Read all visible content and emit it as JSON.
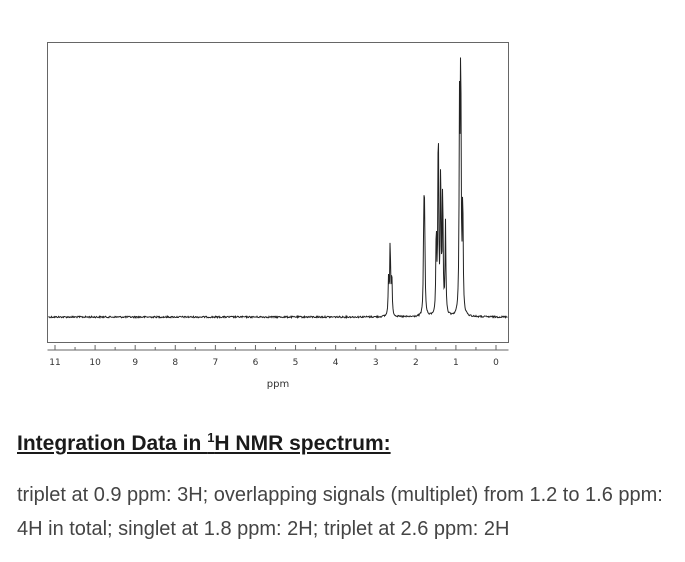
{
  "chart_data": {
    "type": "line",
    "xlabel": "ppm",
    "xlim": [
      11.3,
      0
    ],
    "x_reversed": true,
    "x_ticks": [
      11,
      10,
      9,
      8,
      7,
      6,
      5,
      4,
      3,
      2,
      1,
      0
    ],
    "peaks": [
      {
        "ppm": 0.91,
        "rel_height": 0.74
      },
      {
        "ppm": 0.88,
        "rel_height": 0.98
      },
      {
        "ppm": 0.83,
        "rel_height": 0.44
      },
      {
        "ppm": 1.26,
        "rel_height": 0.34
      },
      {
        "ppm": 1.33,
        "rel_height": 0.48
      },
      {
        "ppm": 1.38,
        "rel_height": 0.55
      },
      {
        "ppm": 1.44,
        "rel_height": 0.74
      },
      {
        "ppm": 1.49,
        "rel_height": 0.32
      },
      {
        "ppm": 1.8,
        "rel_height": 0.37
      },
      {
        "ppm": 1.78,
        "rel_height": 0.34
      },
      {
        "ppm": 2.64,
        "rel_height": 0.28
      },
      {
        "ppm": 2.6,
        "rel_height": 0.16
      },
      {
        "ppm": 2.68,
        "rel_height": 0.14
      }
    ]
  },
  "heading": {
    "prefix": "Integration Data in ",
    "superscript": "1",
    "suffix": "H NMR spectrum:"
  },
  "description": "triplet at 0.9 ppm: 3H; overlapping signals (multiplet) from 1.2 to 1.6 ppm: 4H in total; singlet at 1.8 ppm: 2H; triplet at 2.6 ppm: 2H"
}
